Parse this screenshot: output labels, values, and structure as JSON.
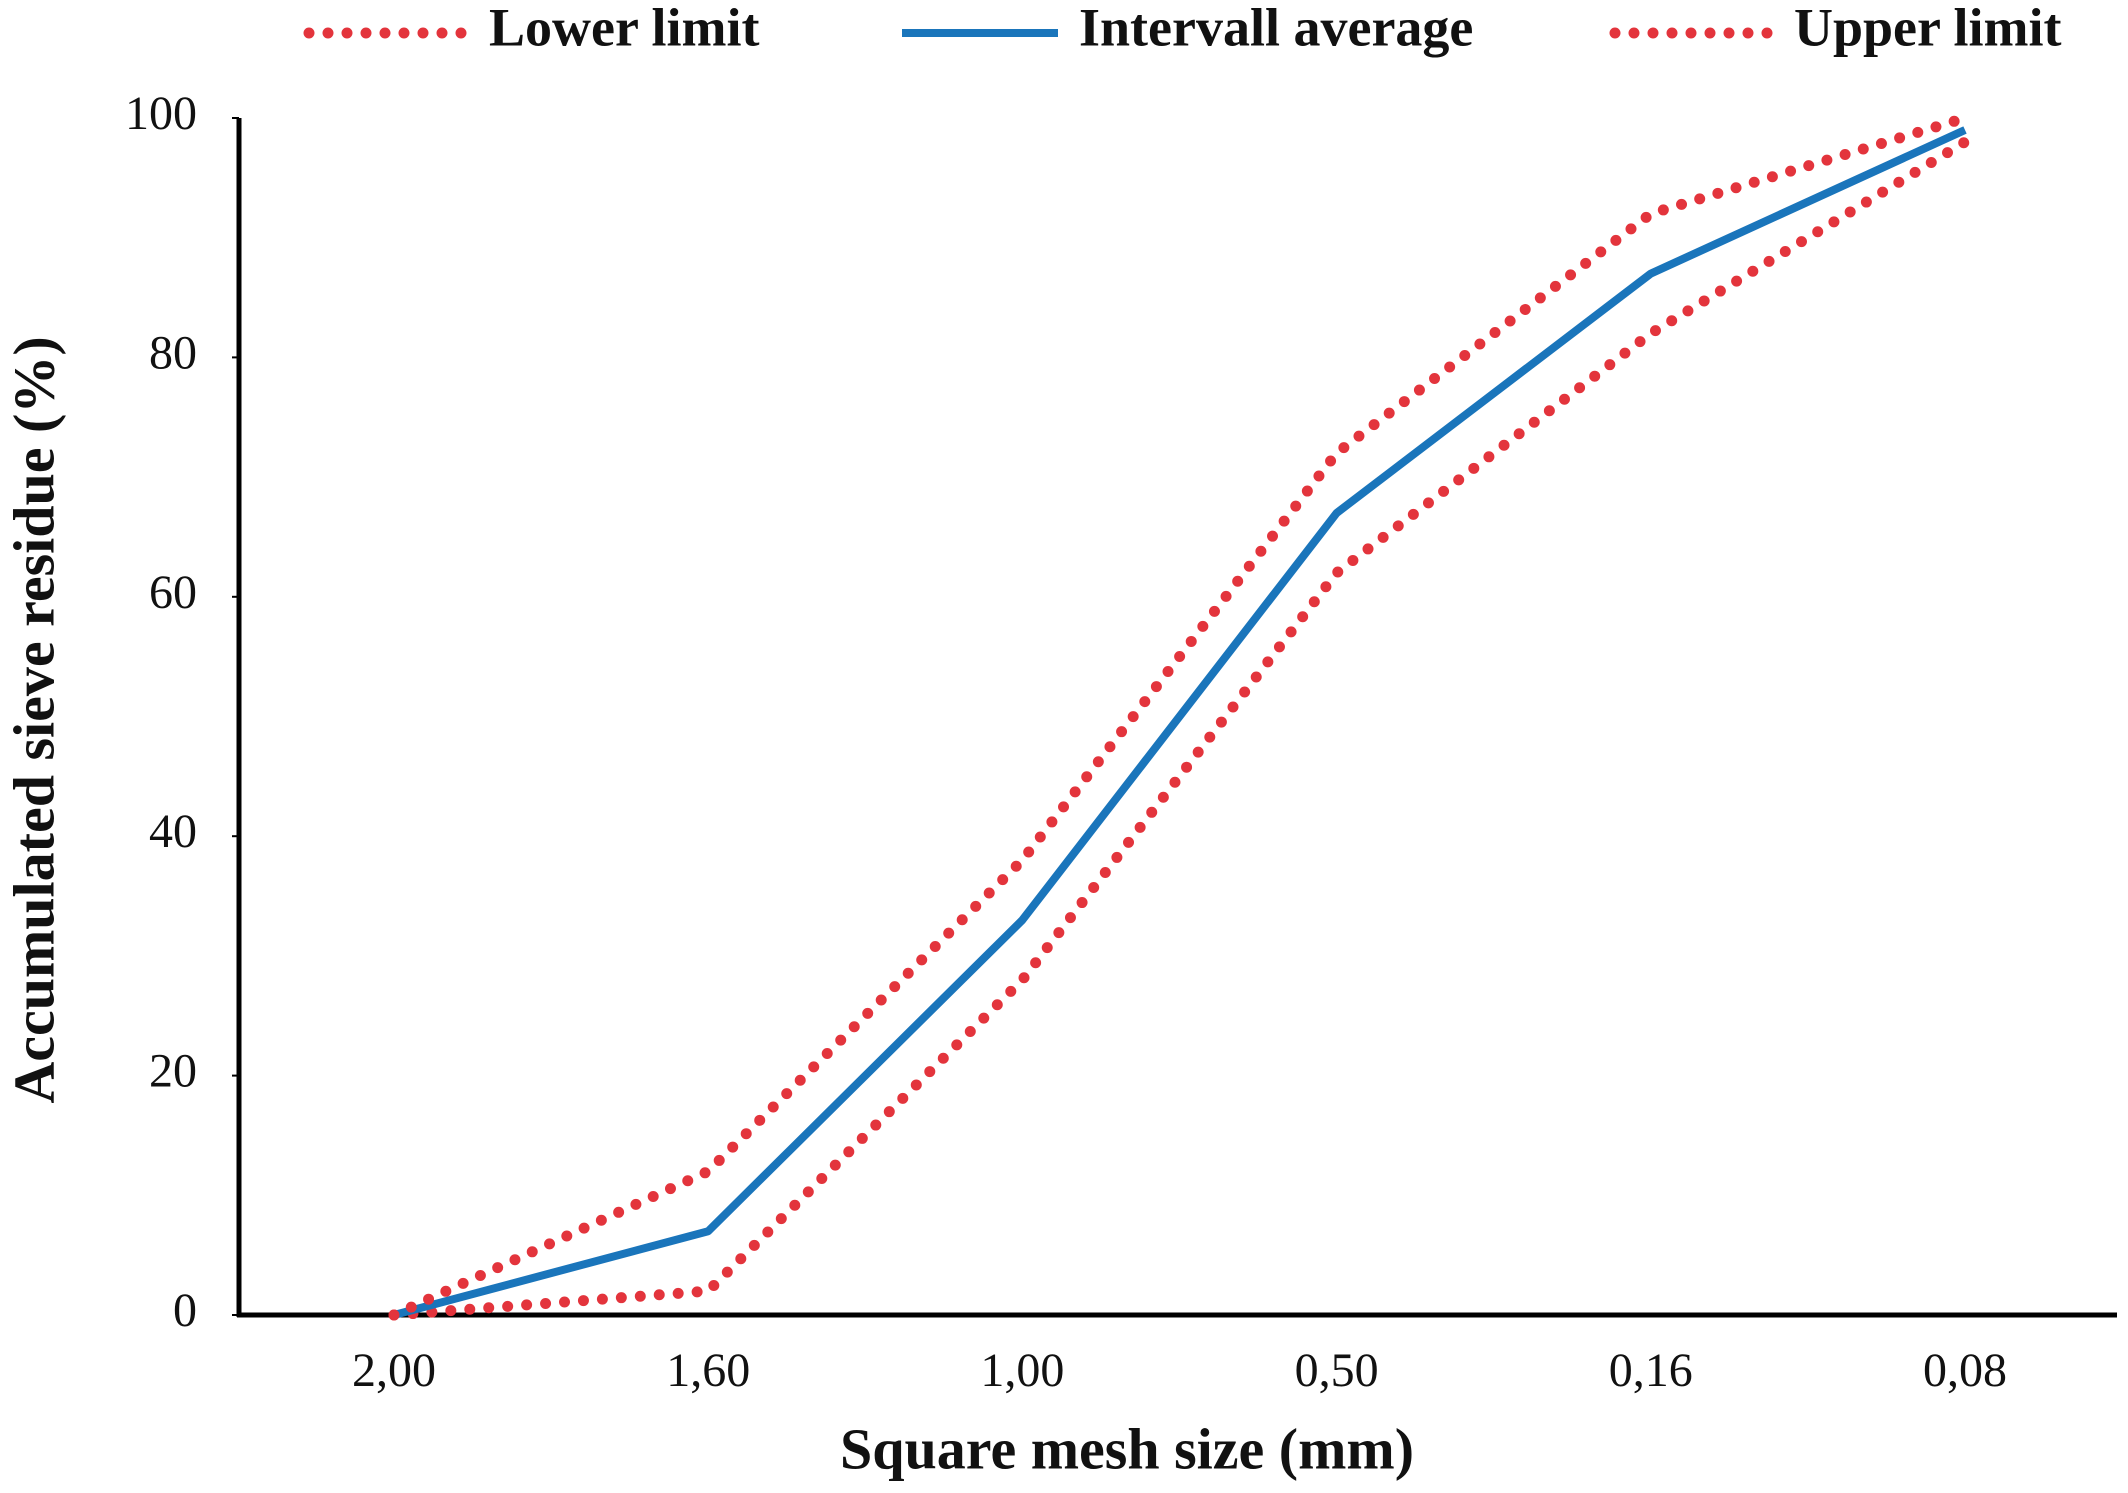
{
  "chart_data": {
    "type": "line",
    "categories": [
      "2,00",
      "1,60",
      "1,00",
      "0,50",
      "0,16",
      "0,08"
    ],
    "series": [
      {
        "name": "Lower limit",
        "color": "#e3343c",
        "style": "dotted",
        "values": [
          0,
          2,
          28,
          62,
          82,
          98
        ]
      },
      {
        "name": "Intervall average",
        "color": "#1a75bb",
        "style": "solid",
        "values": [
          0,
          7,
          33,
          67,
          87,
          99
        ]
      },
      {
        "name": "Upper limit",
        "color": "#e3343c",
        "style": "dotted",
        "values": [
          0,
          12,
          38,
          72,
          92,
          100
        ]
      }
    ],
    "xlabel": "Square mesh size (mm)",
    "ylabel": "Accumulated sieve residue (%)",
    "ylim": [
      0,
      100
    ],
    "yticks": [
      0,
      20,
      40,
      60,
      80,
      100
    ],
    "grid": false,
    "legend": "top"
  }
}
